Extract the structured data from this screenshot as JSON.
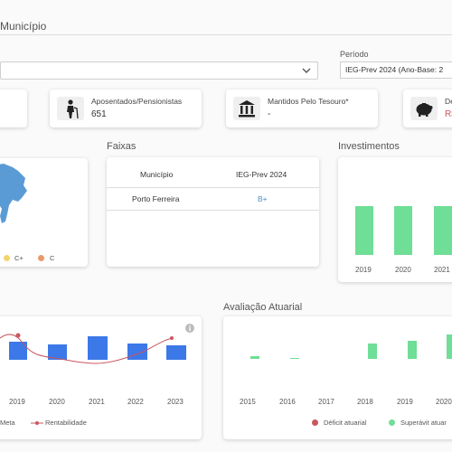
{
  "header": {
    "title": "Município"
  },
  "filters": {
    "municipio_value": "",
    "periodo_label": "Período",
    "periodo_value": "IEG-Prev 2024 (Ano-Base: 2"
  },
  "stats": [
    {
      "label": "Aposentados/Pensionistas",
      "value": "651",
      "icon": "walker-person-icon"
    },
    {
      "label": "Mantidos Pelo Tesouro*",
      "value": "-",
      "icon": "bank-building-icon"
    },
    {
      "label": "De",
      "value": "R$",
      "icon": "piggy-bank-icon"
    }
  ],
  "map_legend": [
    {
      "label": "C+",
      "color": "#f5d36b"
    },
    {
      "label": "C",
      "color": "#e89a68"
    }
  ],
  "faixas": {
    "title": "Faixas",
    "headers": [
      "Município",
      "IEG-Prev 2024"
    ],
    "rows": [
      {
        "municipio": "Porto Ferreira",
        "rating": "B+"
      }
    ]
  },
  "investimentos": {
    "title": "Investimentos",
    "years": [
      "2019",
      "2020",
      "2021"
    ]
  },
  "rentabilidade": {
    "years": [
      "2019",
      "2020",
      "2021",
      "2022",
      "2023"
    ],
    "legend_meta": "Meta",
    "legend_rent": "Rentabilidade",
    "info_icon": "info-icon"
  },
  "avaliacao": {
    "title": "Avaliação Atuarial",
    "years": [
      "2015",
      "2016",
      "2017",
      "2018",
      "2019",
      "2020"
    ],
    "legend_deficit": "Déficit atuarial",
    "legend_superavit": "Superávit atuar"
  },
  "colors": {
    "blue_bar": "#3c78e8",
    "green_bar": "#6fde96",
    "red_line": "#c9575f",
    "map_blue": "#5b9bd5",
    "rating_blue": "#4a90c8"
  }
}
